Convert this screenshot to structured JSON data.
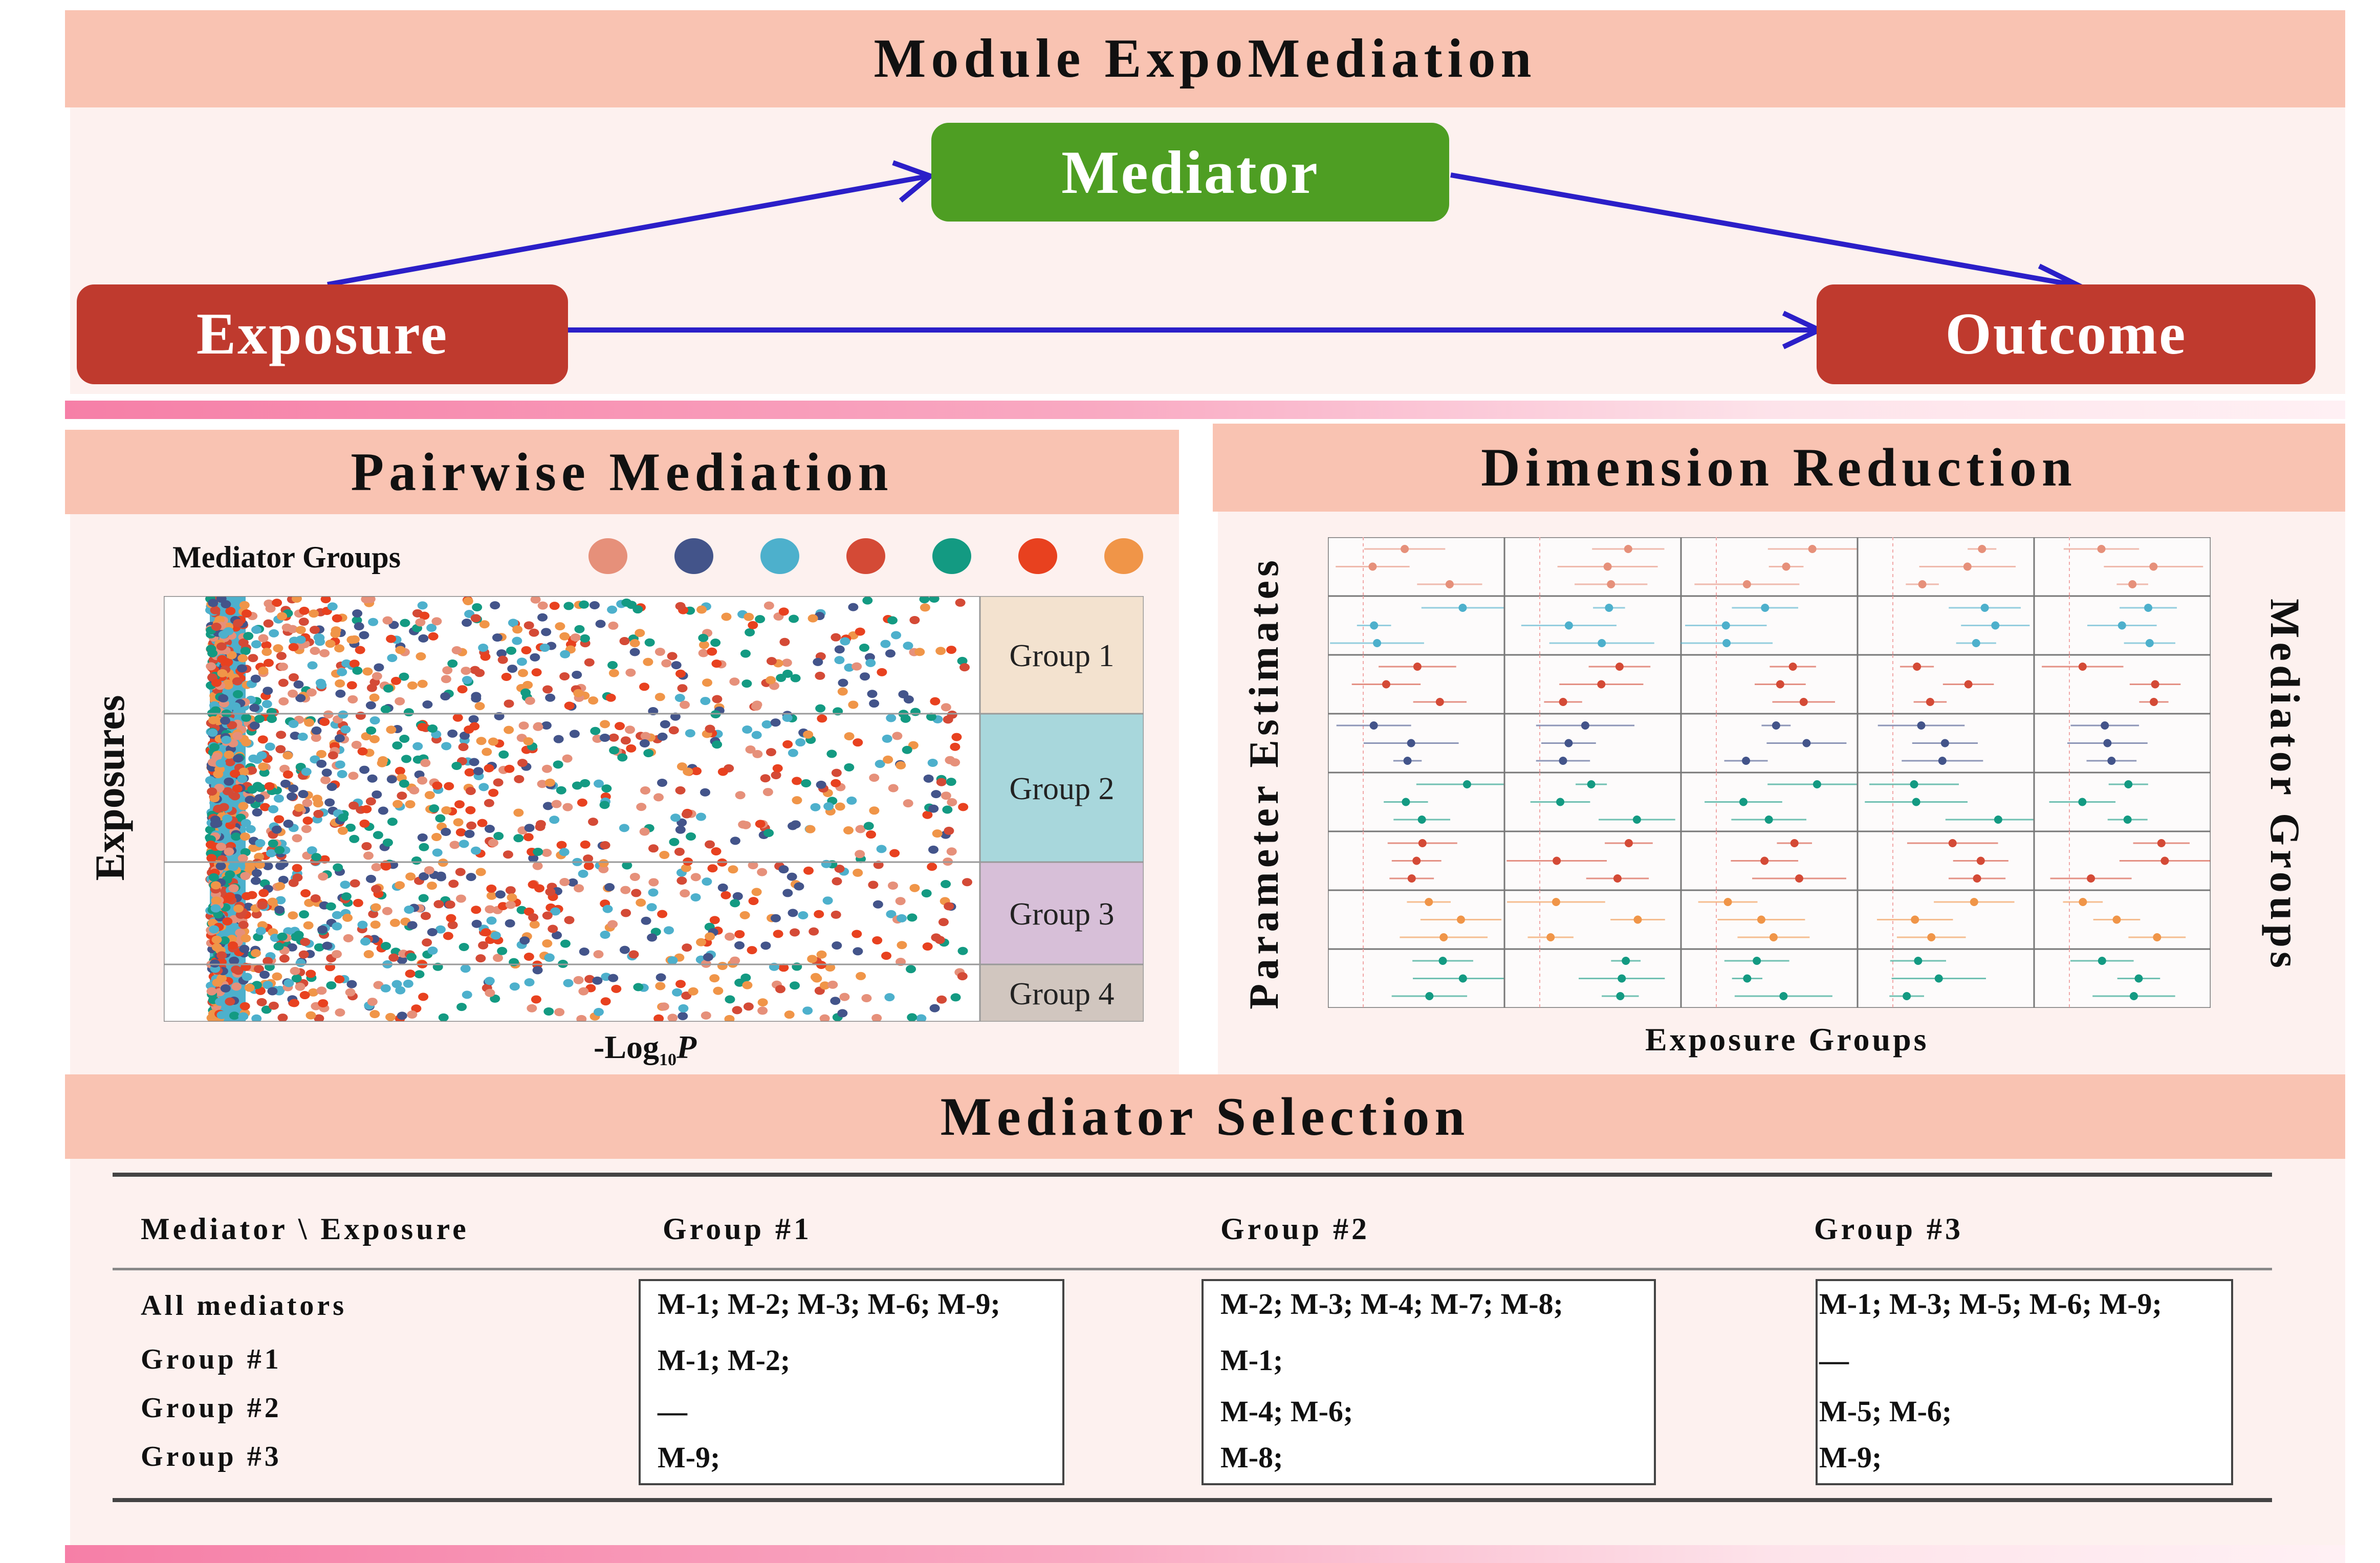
{
  "module_title": "Module ExpoMediation",
  "diagram": {
    "mediator": "Mediator",
    "exposure": "Exposure",
    "outcome": "Outcome",
    "node_colors": {
      "mediator": "#4e9e23",
      "exposure": "#bf3a2e",
      "outcome": "#bf3a2e"
    },
    "arrow_color": "#2b1fc8"
  },
  "pairwise": {
    "title": "Pairwise Mediation",
    "legend_title": "Mediator Groups",
    "legend_colors": [
      "#e6907a",
      "#43548a",
      "#4db0cc",
      "#d44a36",
      "#139a82",
      "#e8411f",
      "#f09548"
    ],
    "ylabel": "Exposures",
    "xlabel_main": "-Log",
    "xlabel_sub": "10",
    "xlabel_tail": "P",
    "groups": [
      {
        "label": "Group 1",
        "color": "#f3e2cf"
      },
      {
        "label": "Group 2",
        "color": "#a8d7dc"
      },
      {
        "label": "Group 3",
        "color": "#d7bfd8"
      },
      {
        "label": "Group 4",
        "color": "#d1c6bf"
      }
    ]
  },
  "dimension": {
    "title": "Dimension Reduction",
    "ylabel": "Parameter Estimates",
    "xlabel": "Exposure Groups",
    "right_label": "Mediator Groups"
  },
  "selection": {
    "title": "Mediator Selection",
    "header": [
      "Mediator \\ Exposure",
      "Group #1",
      "Group #2",
      "Group #3"
    ],
    "row_labels": [
      "All mediators",
      "Group #1",
      "Group #2",
      "Group #3"
    ],
    "columns": [
      [
        "M-1; M-2; M-3; M-6; M-9;",
        "M-1; M-2;",
        "—",
        "M-9;"
      ],
      [
        "M-2; M-3; M-4; M-7; M-8;",
        "M-1;",
        "M-4; M-6;",
        "M-8;"
      ],
      [
        "M-1; M-3; M-5; M-6; M-9;",
        "—",
        "M-5; M-6;",
        "M-9;"
      ]
    ]
  }
}
